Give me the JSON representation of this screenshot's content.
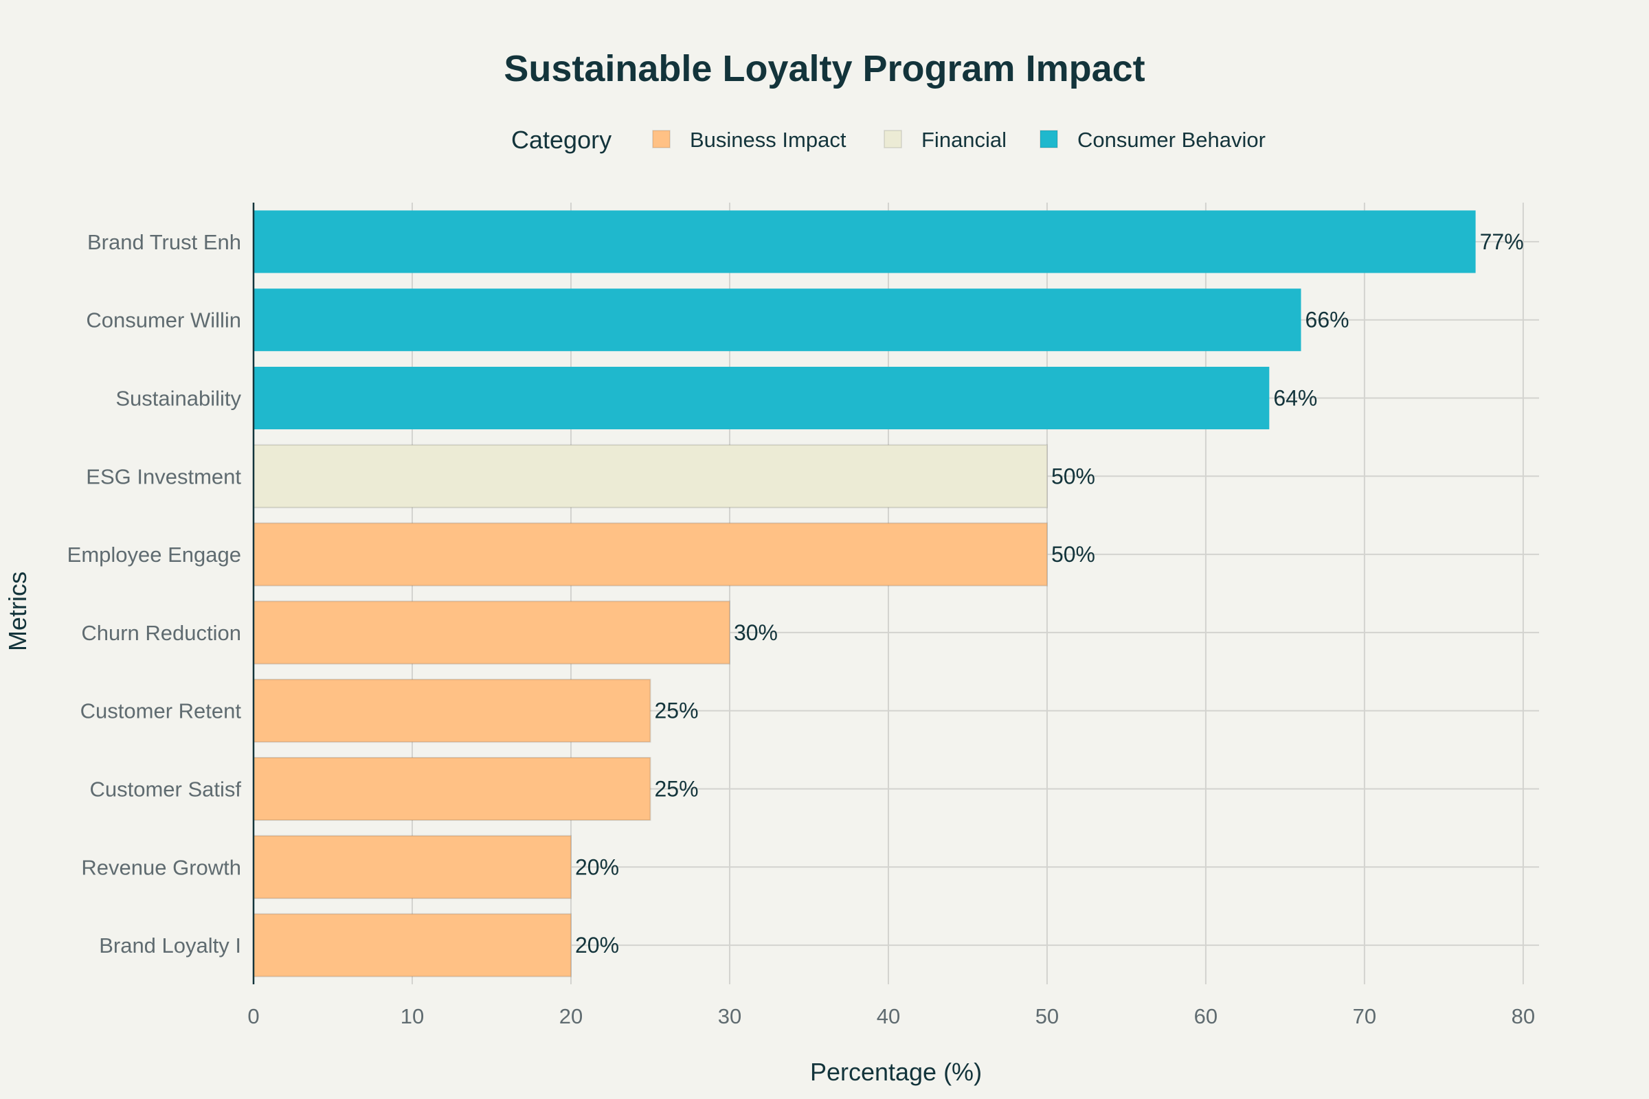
{
  "chart_data": {
    "type": "bar",
    "orientation": "horizontal",
    "title": "Sustainable Loyalty Program Impact",
    "xlabel": "Percentage (%)",
    "ylabel": "Metrics",
    "xlim": [
      0,
      81
    ],
    "xticks": [
      0,
      10,
      20,
      30,
      40,
      50,
      60,
      70,
      80
    ],
    "grid": true,
    "legend": {
      "title": "Category",
      "placement": "top-center",
      "entries": [
        "Business Impact",
        "Financial",
        "Consumer Behavior"
      ]
    },
    "colors": {
      "Business Impact": "#ffc185",
      "Financial": "#ecebd5",
      "Consumer Behavior": "#1fb8cd"
    },
    "categories": [
      "Brand Trust Enh",
      "Consumer Willin",
      "Sustainability",
      "ESG Investment",
      "Employee Engage",
      "Churn Reduction",
      "Customer Retent",
      "Customer Satisf",
      "Revenue Growth",
      "Brand Loyalty I"
    ],
    "values": [
      77,
      66,
      64,
      50,
      50,
      30,
      25,
      25,
      20,
      20
    ],
    "value_labels": [
      "77%",
      "66%",
      "64%",
      "50%",
      "50%",
      "30%",
      "25%",
      "25%",
      "20%",
      "20%"
    ],
    "bar_category": [
      "Consumer Behavior",
      "Consumer Behavior",
      "Consumer Behavior",
      "Financial",
      "Business Impact",
      "Business Impact",
      "Business Impact",
      "Business Impact",
      "Business Impact",
      "Business Impact"
    ]
  }
}
